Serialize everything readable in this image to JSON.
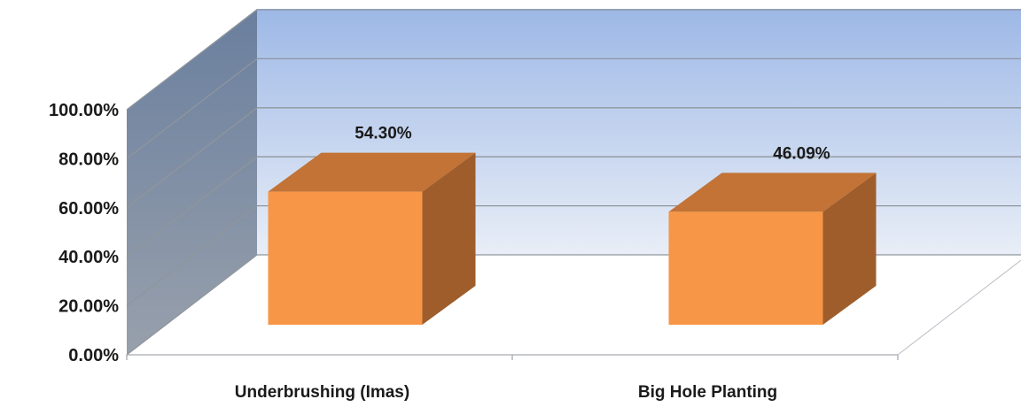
{
  "chart_data": {
    "type": "bar",
    "title": "",
    "xlabel": "",
    "ylabel": "",
    "categories": [
      "Underbrushing (Imas)",
      "Big Hole Planting"
    ],
    "series": [
      {
        "values": [
          54.3,
          46.09
        ],
        "data_labels": [
          "54.30%",
          "46.09%"
        ],
        "color": "#f79646"
      }
    ],
    "ylim": [
      0,
      100
    ],
    "y_tick_labels": [
      "0.00%",
      "20.00%",
      "40.00%",
      "60.00%",
      "80.00%",
      "100.00%"
    ],
    "grid": true,
    "legend": "none",
    "style": "3d-clustered-column",
    "colors": {
      "bar_front": "#f79646",
      "bar_top": "#c27335",
      "bar_side": "#9e5d2b",
      "back_wall_top": "#9db8e6",
      "back_wall_bottom": "#e9eef7",
      "side_wall_top": "#6a7f9e",
      "side_wall_bottom": "#98a0ac",
      "gridline": "#8f959c"
    }
  }
}
